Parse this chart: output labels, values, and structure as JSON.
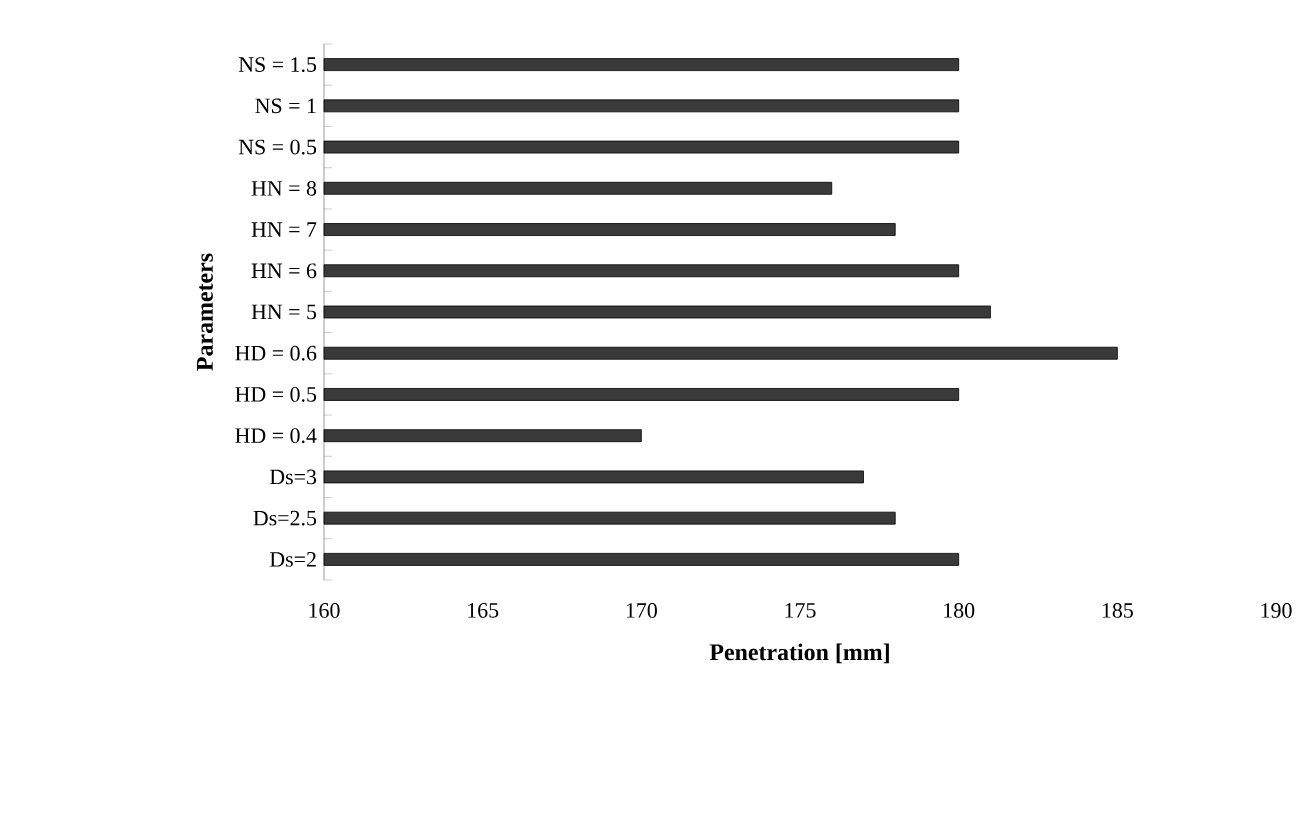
{
  "chart_data": {
    "type": "bar",
    "orientation": "horizontal",
    "xlabel": "Penetration [mm]",
    "ylabel": "Parameters",
    "categories": [
      "NS = 1.5",
      "NS = 1",
      "NS = 0.5",
      "HN = 8",
      "HN = 7",
      "HN = 6",
      "HN = 5",
      "HD = 0.6",
      "HD = 0.5",
      "HD = 0.4",
      "Ds=3",
      "Ds=2.5",
      "Ds=2"
    ],
    "values": [
      180,
      180,
      180,
      176,
      178,
      180,
      181,
      185,
      180,
      170,
      177,
      178,
      180
    ],
    "color": "#3a3a3a",
    "xlim": [
      160,
      190
    ],
    "xticks": [
      160,
      165,
      170,
      175,
      180,
      185,
      190
    ],
    "grid": false
  }
}
